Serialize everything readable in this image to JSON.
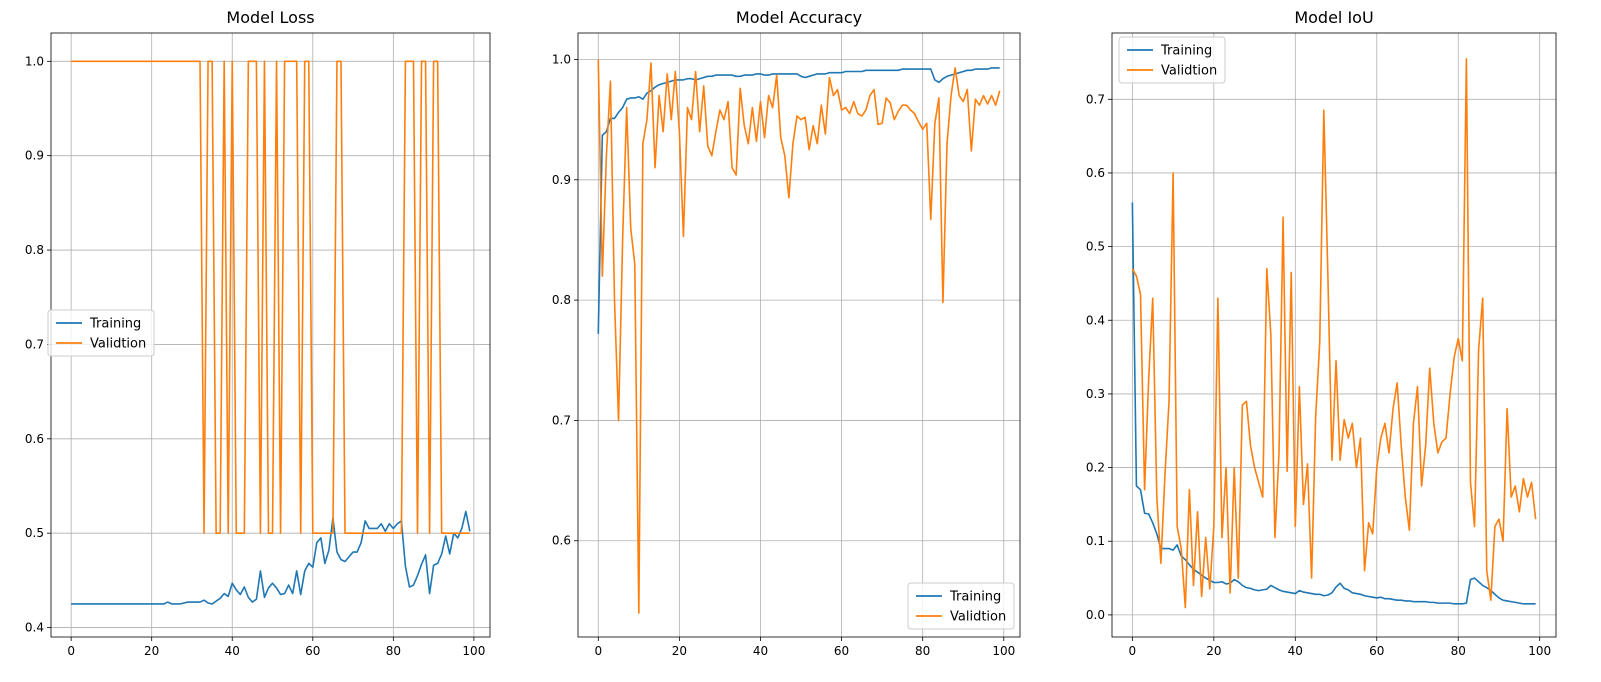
{
  "colors": {
    "training": "#1f77b4",
    "validation": "#ff7f0e",
    "grid": "#b0b0b0"
  },
  "chart_data": [
    {
      "type": "line",
      "title": "Model Loss",
      "xlabel": "",
      "ylabel": "",
      "xlim": [
        -5,
        104
      ],
      "ylim": [
        0.39,
        1.03
      ],
      "xticks": [
        0,
        20,
        40,
        60,
        80,
        100
      ],
      "yticks": [
        0.4,
        0.5,
        0.6,
        0.7,
        0.8,
        0.9,
        1.0
      ],
      "xtick_labels": [
        "0",
        "20",
        "40",
        "60",
        "80",
        "100"
      ],
      "ytick_labels": [
        "0.4",
        "0.5",
        "0.6",
        "0.7",
        "0.8",
        "0.9",
        "1.0"
      ],
      "grid": true,
      "legend_position": "center-left",
      "series": [
        {
          "name": "Training",
          "color": "#1f77b4",
          "values": [
            0.425,
            0.425,
            0.425,
            0.425,
            0.425,
            0.425,
            0.425,
            0.425,
            0.425,
            0.425,
            0.425,
            0.425,
            0.425,
            0.425,
            0.425,
            0.425,
            0.425,
            0.425,
            0.425,
            0.425,
            0.425,
            0.425,
            0.425,
            0.425,
            0.427,
            0.425,
            0.425,
            0.425,
            0.426,
            0.427,
            0.427,
            0.427,
            0.427,
            0.429,
            0.426,
            0.425,
            0.428,
            0.431,
            0.436,
            0.433,
            0.447,
            0.44,
            0.435,
            0.443,
            0.432,
            0.427,
            0.43,
            0.46,
            0.432,
            0.442,
            0.447,
            0.442,
            0.435,
            0.436,
            0.445,
            0.436,
            0.46,
            0.435,
            0.46,
            0.468,
            0.464,
            0.49,
            0.495,
            0.468,
            0.482,
            0.516,
            0.48,
            0.472,
            0.47,
            0.475,
            0.48,
            0.48,
            0.49,
            0.513,
            0.505,
            0.505,
            0.505,
            0.51,
            0.502,
            0.51,
            0.505,
            0.51,
            0.513,
            0.465,
            0.443,
            0.445,
            0.455,
            0.467,
            0.477,
            0.436,
            0.466,
            0.468,
            0.478,
            0.497,
            0.478,
            0.5,
            0.495,
            0.505,
            0.523,
            0.502
          ]
        },
        {
          "name": "Validtion",
          "color": "#ff7f0e",
          "values": [
            1,
            1,
            1,
            1,
            1,
            1,
            1,
            1,
            1,
            1,
            1,
            1,
            1,
            1,
            1,
            1,
            1,
            1,
            1,
            1,
            1,
            1,
            1,
            1,
            1,
            1,
            1,
            1,
            1,
            1,
            1,
            1,
            1,
            0.5,
            1,
            1,
            0.5,
            0.5,
            1,
            0.5,
            1,
            0.5,
            0.5,
            0.5,
            1,
            1,
            1,
            0.5,
            1,
            0.5,
            0.5,
            1,
            0.5,
            1,
            1,
            1,
            1,
            0.5,
            1,
            1,
            0.5,
            0.5,
            0.5,
            0.5,
            0.5,
            0.5,
            1,
            1,
            0.5,
            0.5,
            0.5,
            0.5,
            0.5,
            0.5,
            0.5,
            0.5,
            0.5,
            0.5,
            0.5,
            0.5,
            0.5,
            0.5,
            0.5,
            1,
            1,
            1,
            0.5,
            1,
            1,
            0.5,
            1,
            1,
            0.5,
            0.5,
            0.5,
            0.5,
            0.5,
            0.5,
            0.5,
            0.5
          ]
        }
      ]
    },
    {
      "type": "line",
      "title": "Model Accuracy",
      "xlabel": "",
      "ylabel": "",
      "xlim": [
        -5,
        104
      ],
      "ylim": [
        0.52,
        1.022
      ],
      "xticks": [
        0,
        20,
        40,
        60,
        80,
        100
      ],
      "yticks": [
        0.6,
        0.7,
        0.8,
        0.9,
        1.0
      ],
      "xtick_labels": [
        "0",
        "20",
        "40",
        "60",
        "80",
        "100"
      ],
      "ytick_labels": [
        "0.6",
        "0.7",
        "0.8",
        "0.9",
        "1.0"
      ],
      "grid": true,
      "legend_position": "lower-right",
      "series": [
        {
          "name": "Training",
          "color": "#1f77b4",
          "values": [
            0.772,
            0.937,
            0.94,
            0.951,
            0.951,
            0.956,
            0.96,
            0.967,
            0.968,
            0.968,
            0.969,
            0.967,
            0.972,
            0.974,
            0.977,
            0.979,
            0.98,
            0.981,
            0.982,
            0.983,
            0.983,
            0.983,
            0.984,
            0.984,
            0.983,
            0.984,
            0.985,
            0.986,
            0.986,
            0.987,
            0.987,
            0.987,
            0.987,
            0.987,
            0.986,
            0.986,
            0.987,
            0.987,
            0.987,
            0.988,
            0.988,
            0.987,
            0.987,
            0.988,
            0.988,
            0.988,
            0.988,
            0.988,
            0.988,
            0.988,
            0.986,
            0.985,
            0.986,
            0.987,
            0.988,
            0.988,
            0.988,
            0.989,
            0.989,
            0.989,
            0.989,
            0.99,
            0.99,
            0.99,
            0.99,
            0.99,
            0.991,
            0.991,
            0.991,
            0.991,
            0.991,
            0.991,
            0.991,
            0.991,
            0.991,
            0.992,
            0.992,
            0.992,
            0.992,
            0.992,
            0.992,
            0.992,
            0.992,
            0.983,
            0.981,
            0.984,
            0.986,
            0.987,
            0.988,
            0.989,
            0.99,
            0.991,
            0.991,
            0.992,
            0.992,
            0.992,
            0.992,
            0.993,
            0.993,
            0.993
          ]
        },
        {
          "name": "Validtion",
          "color": "#ff7f0e",
          "values": [
            1.0,
            0.82,
            0.92,
            0.982,
            0.8,
            0.7,
            0.85,
            0.96,
            0.86,
            0.83,
            0.54,
            0.93,
            0.95,
            0.997,
            0.91,
            0.97,
            0.94,
            0.988,
            0.95,
            0.99,
            0.94,
            0.853,
            0.96,
            0.95,
            0.99,
            0.94,
            0.978,
            0.928,
            0.92,
            0.94,
            0.958,
            0.95,
            0.965,
            0.91,
            0.904,
            0.976,
            0.945,
            0.93,
            0.96,
            0.932,
            0.965,
            0.935,
            0.97,
            0.96,
            0.987,
            0.935,
            0.92,
            0.885,
            0.93,
            0.953,
            0.95,
            0.952,
            0.925,
            0.945,
            0.93,
            0.962,
            0.938,
            0.985,
            0.97,
            0.975,
            0.958,
            0.96,
            0.955,
            0.965,
            0.955,
            0.953,
            0.958,
            0.97,
            0.975,
            0.946,
            0.947,
            0.968,
            0.964,
            0.95,
            0.957,
            0.962,
            0.962,
            0.958,
            0.955,
            0.948,
            0.942,
            0.947,
            0.867,
            0.947,
            0.968,
            0.798,
            0.93,
            0.97,
            0.993,
            0.97,
            0.965,
            0.975,
            0.924,
            0.967,
            0.962,
            0.97,
            0.963,
            0.97,
            0.962,
            0.974
          ]
        }
      ]
    },
    {
      "type": "line",
      "title": "Model IoU",
      "xlabel": "",
      "ylabel": "",
      "xlim": [
        -5,
        104
      ],
      "ylim": [
        -0.03,
        0.79
      ],
      "xticks": [
        0,
        20,
        40,
        60,
        80,
        100
      ],
      "yticks": [
        0.0,
        0.1,
        0.2,
        0.3,
        0.4,
        0.5,
        0.6,
        0.7
      ],
      "xtick_labels": [
        "0",
        "20",
        "40",
        "60",
        "80",
        "100"
      ],
      "ytick_labels": [
        "0.0",
        "0.1",
        "0.2",
        "0.3",
        "0.4",
        "0.5",
        "0.6",
        "0.7"
      ],
      "grid": true,
      "legend_position": "upper-left",
      "series": [
        {
          "name": "Training",
          "color": "#1f77b4",
          "values": [
            0.56,
            0.175,
            0.17,
            0.138,
            0.137,
            0.125,
            0.11,
            0.09,
            0.09,
            0.09,
            0.088,
            0.095,
            0.08,
            0.075,
            0.068,
            0.062,
            0.058,
            0.054,
            0.05,
            0.047,
            0.044,
            0.044,
            0.045,
            0.042,
            0.043,
            0.048,
            0.045,
            0.04,
            0.037,
            0.036,
            0.034,
            0.033,
            0.034,
            0.035,
            0.04,
            0.037,
            0.034,
            0.032,
            0.031,
            0.03,
            0.029,
            0.033,
            0.031,
            0.03,
            0.029,
            0.028,
            0.028,
            0.026,
            0.027,
            0.03,
            0.038,
            0.043,
            0.036,
            0.034,
            0.03,
            0.029,
            0.028,
            0.026,
            0.025,
            0.024,
            0.023,
            0.024,
            0.022,
            0.022,
            0.021,
            0.02,
            0.02,
            0.019,
            0.019,
            0.018,
            0.018,
            0.018,
            0.018,
            0.017,
            0.017,
            0.016,
            0.016,
            0.016,
            0.016,
            0.015,
            0.015,
            0.015,
            0.016,
            0.048,
            0.05,
            0.045,
            0.04,
            0.037,
            0.033,
            0.028,
            0.023,
            0.02,
            0.019,
            0.018,
            0.017,
            0.016,
            0.015,
            0.015,
            0.015,
            0.015
          ]
        },
        {
          "name": "Validtion",
          "color": "#ff7f0e",
          "values": [
            0.47,
            0.46,
            0.435,
            0.17,
            0.32,
            0.43,
            0.16,
            0.07,
            0.19,
            0.29,
            0.6,
            0.12,
            0.09,
            0.01,
            0.17,
            0.04,
            0.14,
            0.025,
            0.105,
            0.035,
            0.12,
            0.43,
            0.105,
            0.2,
            0.03,
            0.2,
            0.05,
            0.285,
            0.29,
            0.23,
            0.2,
            0.18,
            0.16,
            0.47,
            0.38,
            0.105,
            0.22,
            0.54,
            0.195,
            0.465,
            0.12,
            0.31,
            0.15,
            0.205,
            0.05,
            0.27,
            0.37,
            0.685,
            0.46,
            0.21,
            0.345,
            0.21,
            0.265,
            0.24,
            0.26,
            0.2,
            0.24,
            0.06,
            0.125,
            0.11,
            0.2,
            0.24,
            0.26,
            0.22,
            0.28,
            0.315,
            0.23,
            0.16,
            0.115,
            0.26,
            0.31,
            0.175,
            0.23,
            0.335,
            0.26,
            0.22,
            0.235,
            0.24,
            0.3,
            0.35,
            0.375,
            0.345,
            0.755,
            0.18,
            0.12,
            0.36,
            0.43,
            0.06,
            0.02,
            0.12,
            0.13,
            0.1,
            0.28,
            0.16,
            0.175,
            0.14,
            0.185,
            0.16,
            0.18,
            0.13
          ]
        }
      ]
    }
  ]
}
